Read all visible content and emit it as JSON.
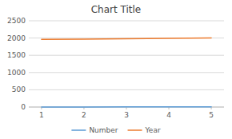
{
  "chart_data": {
    "type": "line",
    "title": "Chart Title",
    "x": [
      1,
      2,
      3,
      4,
      5
    ],
    "series": [
      {
        "name": "Number",
        "color": "#5b9bd5",
        "values": [
          1,
          2,
          3,
          4,
          5
        ]
      },
      {
        "name": "Year",
        "color": "#ed7d31",
        "values": [
          1960,
          1970,
          1980,
          1990,
          2000
        ]
      }
    ],
    "xlim": [
      0.7,
      5.3
    ],
    "ylim": [
      0,
      2500
    ],
    "xticks": [
      1,
      2,
      3,
      4,
      5
    ],
    "yticks": [
      0,
      500,
      1000,
      1500,
      2000,
      2500
    ],
    "grid": true,
    "legend": "bottom"
  }
}
